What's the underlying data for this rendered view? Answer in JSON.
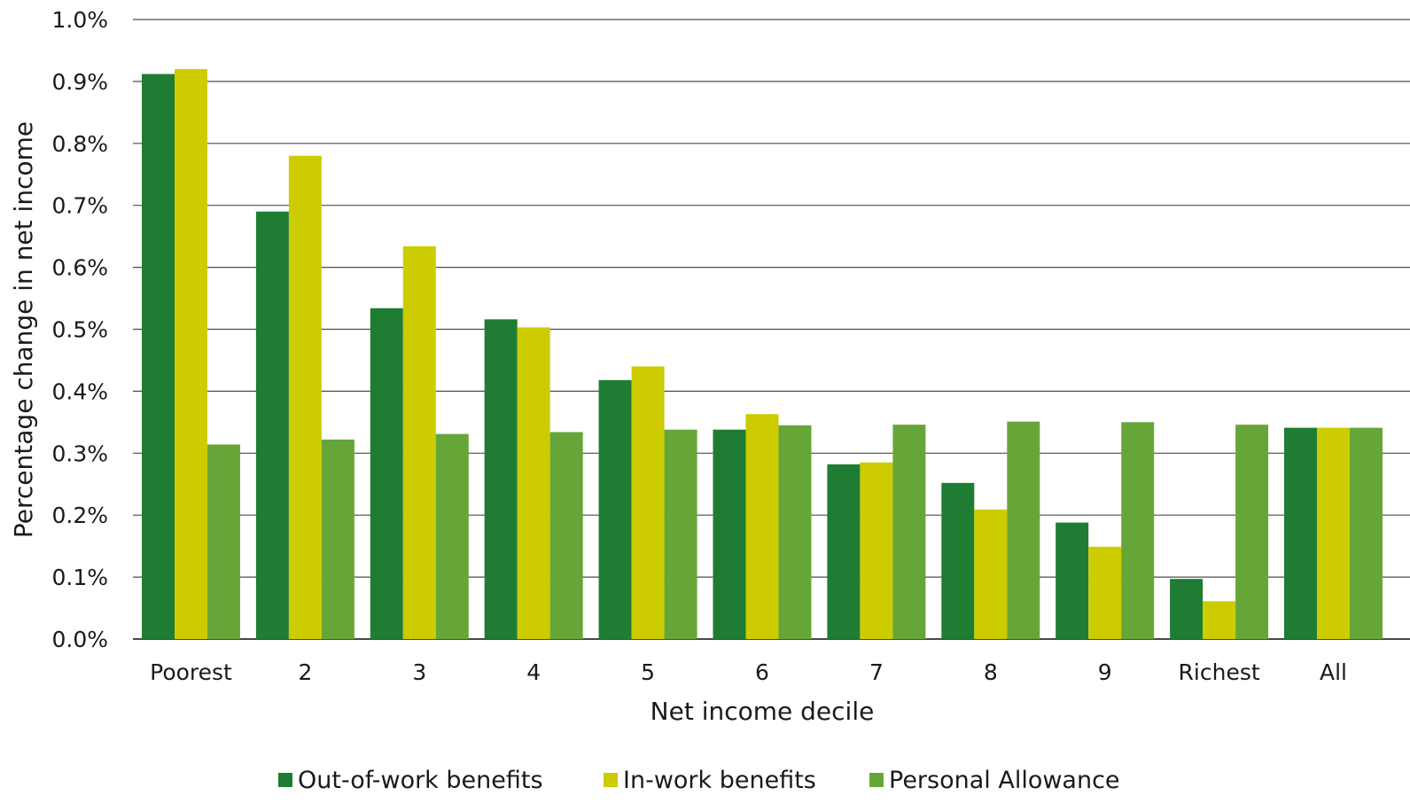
{
  "chart_data": {
    "type": "bar",
    "title": "",
    "xlabel": "Net income decile",
    "ylabel": "Percentage change in net income",
    "categories": [
      "Poorest",
      "2",
      "3",
      "4",
      "5",
      "6",
      "7",
      "8",
      "9",
      "Richest",
      "All"
    ],
    "ylim": [
      0,
      1.0
    ],
    "yticks": [
      "0.0%",
      "0.1%",
      "0.2%",
      "0.3%",
      "0.4%",
      "0.5%",
      "0.6%",
      "0.7%",
      "0.8%",
      "0.9%",
      "1.0%"
    ],
    "grid": true,
    "legend_position": "bottom",
    "series": [
      {
        "name": "Out-of-work benefits",
        "color": "#1e7d32",
        "values": [
          0.912,
          0.69,
          0.534,
          0.516,
          0.418,
          0.338,
          0.282,
          0.252,
          0.188,
          0.097,
          0.341
        ]
      },
      {
        "name": "In-work benefits",
        "color": "#cccc00",
        "values": [
          0.92,
          0.78,
          0.634,
          0.503,
          0.44,
          0.363,
          0.285,
          0.209,
          0.149,
          0.061,
          0.341
        ]
      },
      {
        "name": "Personal Allowance",
        "color": "#66a638",
        "values": [
          0.314,
          0.322,
          0.331,
          0.334,
          0.338,
          0.345,
          0.346,
          0.351,
          0.35,
          0.346,
          0.341
        ]
      }
    ]
  }
}
